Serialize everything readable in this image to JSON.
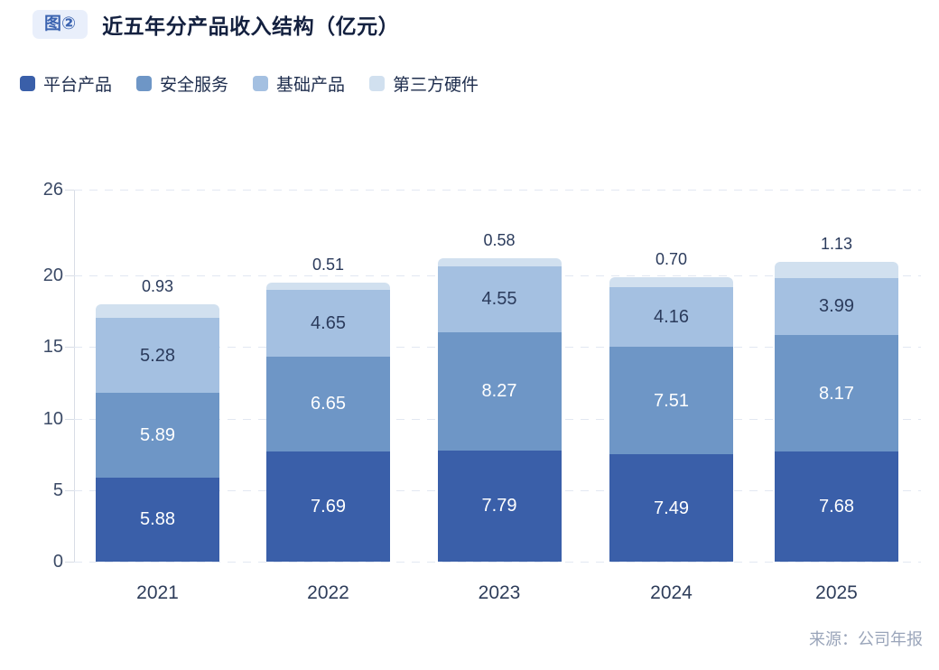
{
  "header": {
    "badge": "图②",
    "title": "近五年分产品收入结构（亿元）"
  },
  "source": "来源：公司年报",
  "colors": {
    "badge_bg": "#e9effb",
    "badge_text": "#3b63b0",
    "title_text": "#13203f",
    "grid_line": "#e2e8f2",
    "axis_line": "#d8dde6",
    "y_axis_text": "#3b4a66",
    "x_axis_text": "#2e3d5a",
    "above_label_text": "#2b3b5c",
    "source_text": "#9aa5ba"
  },
  "chart_data": {
    "type": "bar",
    "stacked": true,
    "title": "近五年分产品收入结构（亿元）",
    "categories": [
      "2021",
      "2022",
      "2023",
      "2024",
      "2025"
    ],
    "series": [
      {
        "name": "平台产品",
        "color": "#3a5fa9",
        "label_color": "#ffffff",
        "label_inside": true,
        "values": [
          5.88,
          7.69,
          7.79,
          7.49,
          7.68
        ]
      },
      {
        "name": "安全服务",
        "color": "#6e96c6",
        "label_color": "#ffffff",
        "label_inside": true,
        "values": [
          5.89,
          6.65,
          8.27,
          7.51,
          8.17
        ]
      },
      {
        "name": "基础产品",
        "color": "#a4c0e1",
        "label_color": "#2b3b5c",
        "label_inside": true,
        "values": [
          5.28,
          4.65,
          4.55,
          4.16,
          3.99
        ]
      },
      {
        "name": "第三方硬件",
        "color": "#d1e0ef",
        "label_color": "#2b3b5c",
        "label_inside": false,
        "values": [
          0.93,
          0.51,
          0.58,
          0.7,
          1.13
        ]
      }
    ],
    "totals": [
      17.98,
      19.5,
      21.19,
      19.86,
      20.97
    ],
    "yticks": [
      0,
      5,
      10,
      15,
      20,
      26
    ],
    "ylim": [
      0,
      26
    ],
    "xlabel": "",
    "ylabel": "",
    "grid": "dashed-horizontal",
    "legend_position": "top"
  }
}
